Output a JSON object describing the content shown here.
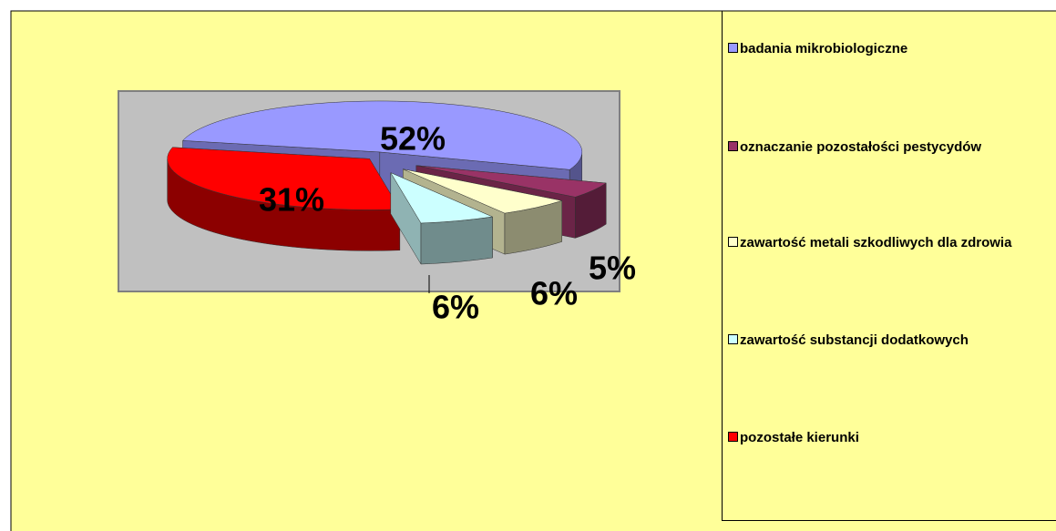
{
  "chart_data": {
    "type": "pie",
    "categories": [
      "badania mikrobiologiczne",
      "oznaczanie pozostałości pestycydów",
      "zawartość metali szkodliwych dla zdrowia",
      "zawartość substancji dodatkowych",
      "pozostałe kierunki"
    ],
    "values": [
      52,
      5,
      6,
      6,
      31
    ],
    "value_labels": [
      "52%",
      "5%",
      "6%",
      "6%",
      "31%"
    ],
    "colors": [
      "#9999ff",
      "#993366",
      "#ffffcc",
      "#ccffff",
      "#ff0000"
    ],
    "legend": "right"
  }
}
